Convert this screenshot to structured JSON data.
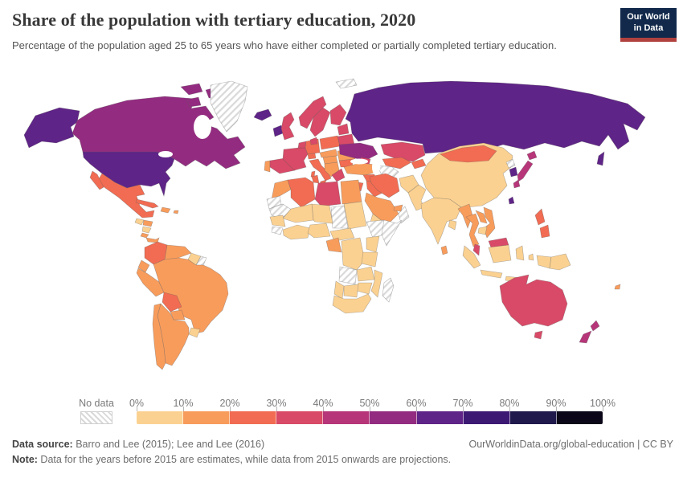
{
  "header": {
    "title": "Share of the population with tertiary education, 2020",
    "subtitle": "Percentage of the population aged 25 to 65 years who have either completed or partially completed tertiary education."
  },
  "logo": {
    "line1": "Our World",
    "line2": "in Data",
    "bg_color": "#12294b",
    "accent_color": "#b0413e"
  },
  "legend": {
    "no_data_label": "No data",
    "ticks": [
      "0%",
      "10%",
      "20%",
      "30%",
      "40%",
      "50%",
      "60%",
      "70%",
      "80%",
      "90%",
      "100%"
    ]
  },
  "footer": {
    "source_label": "Data source:",
    "source_text": " Barro and Lee (2015); Lee and Lee (2016)",
    "link_text": "OurWorldinData.org/global-education | CC BY",
    "note_label": "Note:",
    "note_text": " Data for the years before 2015 are estimates, while data from 2015 onwards are projections."
  },
  "chart_data": {
    "type": "choropleth_map",
    "title": "Share of the population with tertiary education",
    "year": 2020,
    "unit": "% of population aged 25 to 65",
    "legend_buckets": [
      {
        "range": "0-10%",
        "color": "#FBD191"
      },
      {
        "range": "10-20%",
        "color": "#F89C5C"
      },
      {
        "range": "20-30%",
        "color": "#F16C52"
      },
      {
        "range": "30-40%",
        "color": "#D84A67"
      },
      {
        "range": "40-50%",
        "color": "#B63679"
      },
      {
        "range": "50-60%",
        "color": "#932C80"
      },
      {
        "range": "60-70%",
        "color": "#5F2487"
      },
      {
        "range": "70-80%",
        "color": "#3C1A73"
      },
      {
        "range": "80-90%",
        "color": "#201A4C"
      },
      {
        "range": "90-100%",
        "color": "#0B0718"
      }
    ],
    "no_data_style": "hatched",
    "countries": [
      {
        "name": "United States",
        "bucket": "60-70%"
      },
      {
        "name": "Canada",
        "bucket": "50-60%"
      },
      {
        "name": "Greenland",
        "bucket": "No data"
      },
      {
        "name": "Iceland",
        "bucket": "60-70%"
      },
      {
        "name": "Svalbard",
        "bucket": "No data"
      },
      {
        "name": "Mexico",
        "bucket": "20-30%"
      },
      {
        "name": "Guatemala",
        "bucket": "0-10%"
      },
      {
        "name": "Honduras",
        "bucket": "10-20%"
      },
      {
        "name": "Nicaragua",
        "bucket": "0-10%"
      },
      {
        "name": "Costa Rica",
        "bucket": "10-20%"
      },
      {
        "name": "Panama",
        "bucket": "10-20%"
      },
      {
        "name": "Cuba",
        "bucket": "20-30%"
      },
      {
        "name": "Dominican Republic",
        "bucket": "10-20%"
      },
      {
        "name": "Puerto Rico",
        "bucket": "10-20%"
      },
      {
        "name": "Colombia",
        "bucket": "20-30%"
      },
      {
        "name": "Venezuela",
        "bucket": "10-20%"
      },
      {
        "name": "Guyana",
        "bucket": "0-10%"
      },
      {
        "name": "Suriname",
        "bucket": "No data"
      },
      {
        "name": "Ecuador",
        "bucket": "10-20%"
      },
      {
        "name": "Peru",
        "bucket": "10-20%"
      },
      {
        "name": "Brazil",
        "bucket": "10-20%"
      },
      {
        "name": "Bolivia",
        "bucket": "20-30%"
      },
      {
        "name": "Paraguay",
        "bucket": "10-20%"
      },
      {
        "name": "Uruguay",
        "bucket": "0-10%"
      },
      {
        "name": "Argentina",
        "bucket": "10-20%"
      },
      {
        "name": "Chile",
        "bucket": "10-20%"
      },
      {
        "name": "Ireland",
        "bucket": "60-70%"
      },
      {
        "name": "United Kingdom",
        "bucket": "30-40%"
      },
      {
        "name": "Portugal",
        "bucket": "10-20%"
      },
      {
        "name": "Spain",
        "bucket": "30-40%"
      },
      {
        "name": "France",
        "bucket": "30-40%"
      },
      {
        "name": "Netherlands",
        "bucket": "30-40%"
      },
      {
        "name": "Germany",
        "bucket": "20-30%"
      },
      {
        "name": "Denmark",
        "bucket": "30-40%"
      },
      {
        "name": "Norway",
        "bucket": "30-40%"
      },
      {
        "name": "Sweden",
        "bucket": "30-40%"
      },
      {
        "name": "Finland",
        "bucket": "30-40%"
      },
      {
        "name": "Baltic states",
        "bucket": "30-40%"
      },
      {
        "name": "Poland",
        "bucket": "20-30%"
      },
      {
        "name": "Austria & Czechia",
        "bucket": "10-20%"
      },
      {
        "name": "Switzerland",
        "bucket": "20-30%"
      },
      {
        "name": "Italy",
        "bucket": "20-30%"
      },
      {
        "name": "Hungary",
        "bucket": "10-20%"
      },
      {
        "name": "Serbia & Balkans",
        "bucket": "10-20%"
      },
      {
        "name": "Romania",
        "bucket": "10-20%"
      },
      {
        "name": "Bulgaria",
        "bucket": "20-30%"
      },
      {
        "name": "Greece",
        "bucket": "30-40%"
      },
      {
        "name": "Belarus",
        "bucket": "30-40%"
      },
      {
        "name": "Ukraine",
        "bucket": "50-60%"
      },
      {
        "name": "Russia",
        "bucket": "60-70%"
      },
      {
        "name": "Kazakhstan",
        "bucket": "30-40%"
      },
      {
        "name": "Uzbekistan",
        "bucket": "20-30%"
      },
      {
        "name": "Kyrgyzstan",
        "bucket": "20-30%"
      },
      {
        "name": "Turkmenistan",
        "bucket": "No data"
      },
      {
        "name": "Georgia & Caucasus",
        "bucket": "30-40%"
      },
      {
        "name": "Turkey",
        "bucket": "10-20%"
      },
      {
        "name": "Syria",
        "bucket": "20-30%"
      },
      {
        "name": "Iraq",
        "bucket": "20-30%"
      },
      {
        "name": "Jordan",
        "bucket": "20-30%"
      },
      {
        "name": "Iran",
        "bucket": "20-30%"
      },
      {
        "name": "Saudi Arabia",
        "bucket": "10-20%"
      },
      {
        "name": "Yemen",
        "bucket": "0-10%"
      },
      {
        "name": "Oman",
        "bucket": "No data"
      },
      {
        "name": "United Arab Emirates",
        "bucket": "10-20%"
      },
      {
        "name": "Afghanistan",
        "bucket": "0-10%"
      },
      {
        "name": "Pakistan",
        "bucket": "0-10%"
      },
      {
        "name": "India",
        "bucket": "0-10%"
      },
      {
        "name": "Sri Lanka",
        "bucket": "10-20%"
      },
      {
        "name": "Bangladesh",
        "bucket": "0-10%"
      },
      {
        "name": "China",
        "bucket": "0-10%"
      },
      {
        "name": "Mongolia",
        "bucket": "20-30%"
      },
      {
        "name": "North Korea",
        "bucket": "No data"
      },
      {
        "name": "South Korea",
        "bucket": "60-70%"
      },
      {
        "name": "Japan",
        "bucket": "40-50%"
      },
      {
        "name": "Taiwan",
        "bucket": "60-70%"
      },
      {
        "name": "Myanmar",
        "bucket": "10-20%"
      },
      {
        "name": "Thailand",
        "bucket": "10-20%"
      },
      {
        "name": "Laos",
        "bucket": "10-20%"
      },
      {
        "name": "Vietnam",
        "bucket": "10-20%"
      },
      {
        "name": "Cambodia",
        "bucket": "0-10%"
      },
      {
        "name": "Malaysia",
        "bucket": "30-40%"
      },
      {
        "name": "Indonesia",
        "bucket": "0-10%"
      },
      {
        "name": "Philippines",
        "bucket": "20-30%"
      },
      {
        "name": "Papua New Guinea",
        "bucket": "0-10%"
      },
      {
        "name": "Australia",
        "bucket": "30-40%"
      },
      {
        "name": "New Zealand",
        "bucket": "40-50%"
      },
      {
        "name": "Fiji",
        "bucket": "10-20%"
      },
      {
        "name": "Morocco",
        "bucket": "10-20%"
      },
      {
        "name": "Western Sahara",
        "bucket": "No data"
      },
      {
        "name": "Mauritania",
        "bucket": "No data"
      },
      {
        "name": "Algeria",
        "bucket": "20-30%"
      },
      {
        "name": "Tunisia",
        "bucket": "20-30%"
      },
      {
        "name": "Libya",
        "bucket": "30-40%"
      },
      {
        "name": "Egypt",
        "bucket": "10-20%"
      },
      {
        "name": "Sudan",
        "bucket": "0-10%"
      },
      {
        "name": "Chad",
        "bucket": "No data"
      },
      {
        "name": "Niger",
        "bucket": "0-10%"
      },
      {
        "name": "Mali",
        "bucket": "0-10%"
      },
      {
        "name": "Senegal",
        "bucket": "0-10%"
      },
      {
        "name": "Guinea",
        "bucket": "No data"
      },
      {
        "name": "Ghana",
        "bucket": "0-10%"
      },
      {
        "name": "Nigeria",
        "bucket": "0-10%"
      },
      {
        "name": "Cameroon",
        "bucket": "0-10%"
      },
      {
        "name": "Ethiopia",
        "bucket": "No data"
      },
      {
        "name": "Somalia",
        "bucket": "No data"
      },
      {
        "name": "Gabon",
        "bucket": "10-20%"
      },
      {
        "name": "DR Congo",
        "bucket": "0-10%"
      },
      {
        "name": "Kenya",
        "bucket": "0-10%"
      },
      {
        "name": "Tanzania",
        "bucket": "0-10%"
      },
      {
        "name": "Angola",
        "bucket": "No data"
      },
      {
        "name": "Zambia",
        "bucket": "0-10%"
      },
      {
        "name": "Mozambique",
        "bucket": "0-10%"
      },
      {
        "name": "Zimbabwe",
        "bucket": "0-10%"
      },
      {
        "name": "Botswana",
        "bucket": "0-10%"
      },
      {
        "name": "Namibia",
        "bucket": "0-10%"
      },
      {
        "name": "South Africa",
        "bucket": "0-10%"
      },
      {
        "name": "Madagascar",
        "bucket": "No data"
      }
    ]
  }
}
